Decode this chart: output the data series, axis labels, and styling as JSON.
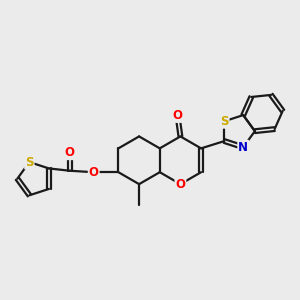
{
  "bg_color": "#ebebeb",
  "bond_color": "#1a1a1a",
  "bond_width": 1.6,
  "atom_colors": {
    "O": "#ff0000",
    "S": "#ccaa00",
    "N": "#0000cc",
    "C": "#1a1a1a"
  },
  "font_size": 8.5,
  "figsize": [
    3.0,
    3.0
  ],
  "dpi": 100
}
